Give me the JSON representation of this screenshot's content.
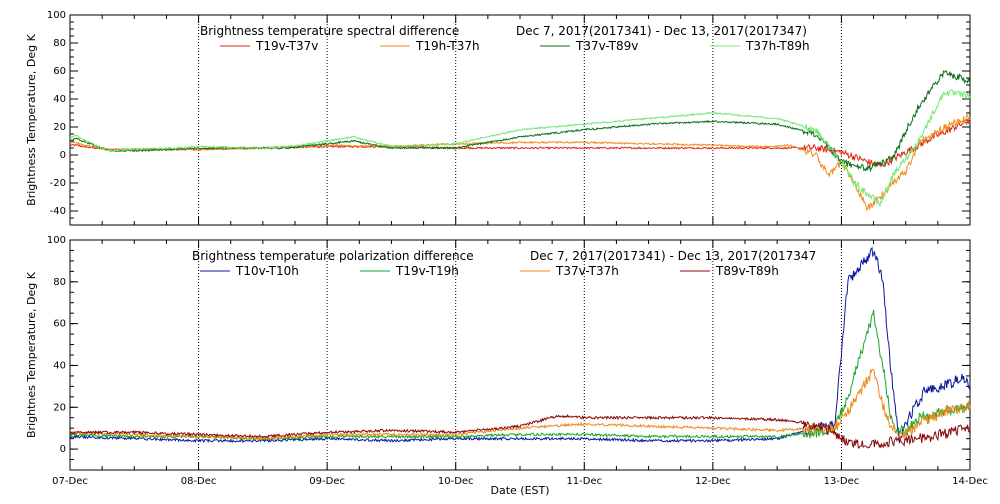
{
  "chart_data": [
    {
      "type": "line",
      "title": "Brightness temperature spectral difference",
      "date_range": "Dec  7, 2017(2017341) - Dec 13, 2017(2017347)",
      "ylabel": "Brightness Temperature, Deg K",
      "xlabel": "",
      "ylim": [
        -50,
        100
      ],
      "yticks": [
        -40,
        -20,
        0,
        20,
        40,
        60,
        80,
        100
      ],
      "grid": "vertical-dotted",
      "series": [
        {
          "name": "T19v-T37v",
          "color": "#dd2a12",
          "x": [
            0,
            0.05,
            0.1,
            0.2,
            0.3,
            0.5,
            0.8,
            1.0,
            1.5,
            2.0,
            2.5,
            3.0,
            3.5,
            4.0,
            4.5,
            5.0,
            5.5,
            5.8,
            6.0,
            6.3,
            6.7,
            7.0
          ],
          "y": [
            7,
            7,
            6,
            5,
            4,
            4,
            4,
            4,
            5,
            6,
            6,
            5,
            5,
            5,
            5,
            5,
            5,
            5,
            2,
            -8,
            12,
            25
          ]
        },
        {
          "name": "T19h-T37h",
          "color": "#f08a1c",
          "x": [
            0,
            0.05,
            0.1,
            0.3,
            0.5,
            0.8,
            1.0,
            1.5,
            2.0,
            2.5,
            3.0,
            3.5,
            4.0,
            4.5,
            5.0,
            5.4,
            5.6,
            5.8,
            5.9,
            6.0,
            6.1,
            6.2,
            6.3,
            6.4,
            6.5,
            6.6,
            6.8,
            7.0
          ],
          "y": [
            9,
            9,
            7,
            4,
            4,
            4,
            4,
            5,
            7,
            6,
            8,
            9,
            9,
            8,
            7,
            6,
            7,
            0,
            -15,
            -5,
            -20,
            -38,
            -30,
            -20,
            -12,
            8,
            20,
            27
          ]
        },
        {
          "name": "T37v-T89v",
          "color": "#0a6e1a",
          "x": [
            0,
            0.05,
            0.1,
            0.3,
            0.5,
            0.8,
            1.0,
            1.5,
            1.7,
            2.0,
            2.2,
            2.5,
            3.0,
            3.5,
            4.0,
            4.5,
            5.0,
            5.5,
            5.8,
            6.0,
            6.2,
            6.4,
            6.6,
            6.8,
            7.0
          ],
          "y": [
            10,
            12,
            10,
            3,
            3,
            4,
            5,
            5,
            5,
            8,
            10,
            5,
            5,
            13,
            18,
            22,
            24,
            22,
            15,
            -5,
            -10,
            -2,
            35,
            59,
            53
          ]
        },
        {
          "name": "T37h-T89h",
          "color": "#74e873",
          "x": [
            0,
            0.05,
            0.1,
            0.3,
            0.5,
            0.8,
            1.0,
            1.5,
            1.7,
            2.0,
            2.2,
            2.5,
            3.0,
            3.5,
            4.0,
            4.5,
            5.0,
            5.5,
            5.8,
            6.0,
            6.1,
            6.3,
            6.4,
            6.6,
            6.8,
            7.0
          ],
          "y": [
            12,
            14,
            11,
            3,
            4,
            5,
            6,
            5,
            6,
            10,
            13,
            6,
            8,
            18,
            22,
            26,
            30,
            26,
            18,
            -5,
            -20,
            -35,
            -15,
            10,
            45,
            42
          ]
        }
      ]
    },
    {
      "type": "line",
      "title": "Brightness temperature polarization difference",
      "date_range": "Dec  7, 2017(2017341) - Dec 13, 2017(2017347",
      "ylabel": "Brightnes Temperature, Deg K",
      "xlabel": "Date (EST)",
      "ylim": [
        -10,
        100
      ],
      "yticks": [
        0,
        20,
        40,
        60,
        80,
        100
      ],
      "x_tick_labels": [
        "07-Dec",
        "08-Dec",
        "09-Dec",
        "10-Dec",
        "11-Dec",
        "12-Dec",
        "13-Dec",
        "14-Dec"
      ],
      "grid": "vertical-dotted",
      "series": [
        {
          "name": "T10v-T10h",
          "color": "#0a1a9a",
          "x": [
            0,
            0.5,
            1.0,
            1.5,
            2.0,
            2.5,
            3.0,
            3.5,
            4.0,
            4.5,
            5.0,
            5.5,
            5.8,
            5.95,
            6.05,
            6.15,
            6.25,
            6.32,
            6.38,
            6.45,
            6.55,
            6.65,
            6.8,
            6.95,
            7.0
          ],
          "y": [
            6,
            5,
            4,
            4,
            5,
            4,
            5,
            5,
            5,
            4,
            4,
            5,
            10,
            12,
            80,
            88,
            95,
            82,
            40,
            5,
            18,
            28,
            30,
            35,
            28
          ]
        },
        {
          "name": "T19v-T19h",
          "color": "#16a62a",
          "x": [
            0,
            0.5,
            1.0,
            1.5,
            2.0,
            2.5,
            3.0,
            3.5,
            4.0,
            4.5,
            5.0,
            5.5,
            5.8,
            5.95,
            6.05,
            6.15,
            6.25,
            6.32,
            6.4,
            6.5,
            6.6,
            6.8,
            7.0
          ],
          "y": [
            7,
            6,
            6,
            5,
            6,
            6,
            6,
            7,
            7,
            6,
            6,
            6,
            8,
            10,
            25,
            45,
            65,
            40,
            10,
            8,
            15,
            18,
            20
          ]
        },
        {
          "name": "T37v-T37h",
          "color": "#f08a1c",
          "x": [
            0,
            0.5,
            1.0,
            1.5,
            2.0,
            2.5,
            3.0,
            3.5,
            4.0,
            4.5,
            5.0,
            5.5,
            5.8,
            5.95,
            6.05,
            6.15,
            6.25,
            6.35,
            6.45,
            6.6,
            6.8,
            7.0
          ],
          "y": [
            8,
            7,
            6,
            5,
            7,
            7,
            7,
            10,
            12,
            11,
            10,
            9,
            10,
            10,
            18,
            28,
            38,
            15,
            5,
            12,
            18,
            21
          ]
        },
        {
          "name": "T89v-T89h",
          "color": "#8a0a0a",
          "x": [
            0,
            0.5,
            1.0,
            1.5,
            2.0,
            2.5,
            3.0,
            3.5,
            3.8,
            4.0,
            4.5,
            5.0,
            5.5,
            5.8,
            5.95,
            6.05,
            6.15,
            6.3,
            6.5,
            6.7,
            7.0
          ],
          "y": [
            8,
            8,
            7,
            6,
            8,
            9,
            8,
            11,
            16,
            15,
            15,
            15,
            14,
            12,
            8,
            3,
            2,
            3,
            4,
            6,
            10
          ]
        }
      ]
    }
  ]
}
